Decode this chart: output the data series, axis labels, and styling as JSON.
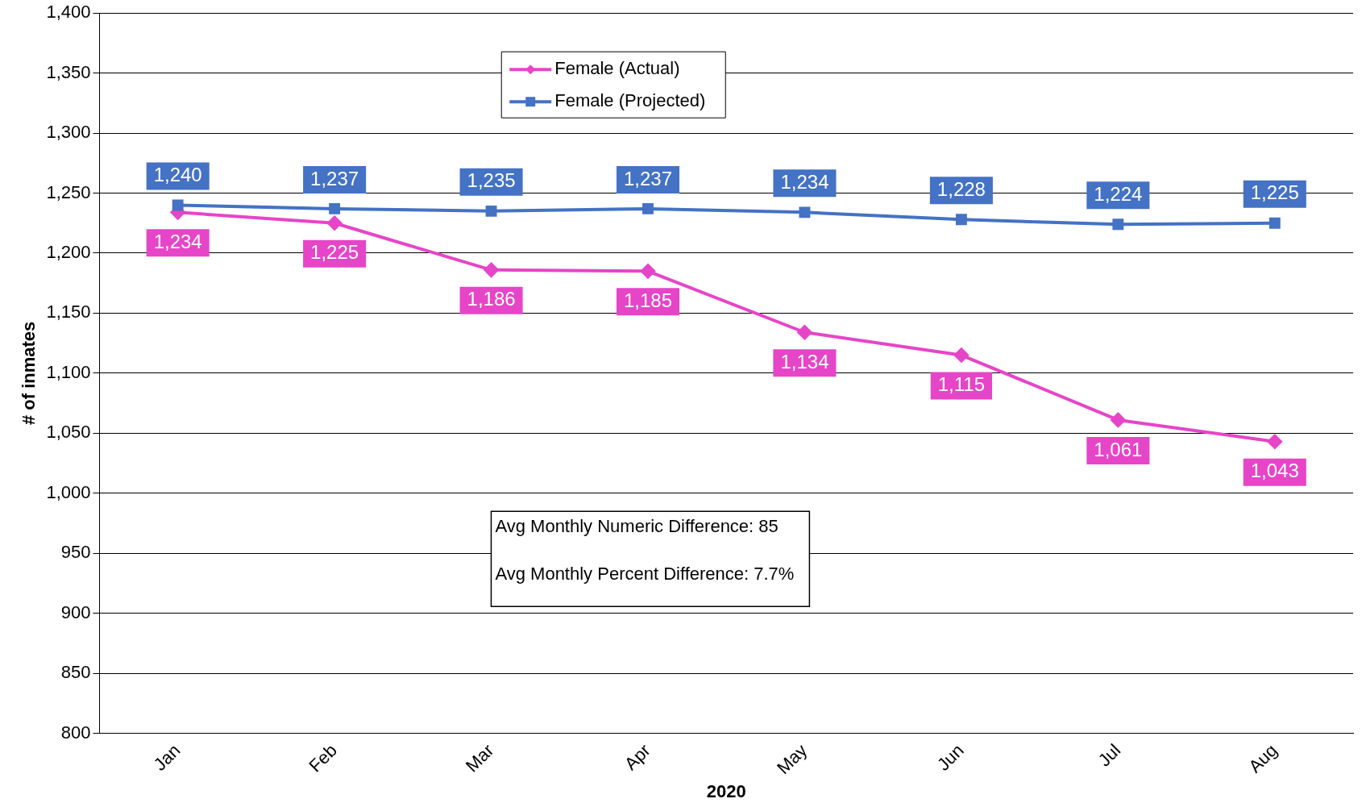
{
  "chart_data": {
    "type": "line",
    "xlabel": "2020",
    "ylabel": "# of inmates",
    "categories": [
      "Jan",
      "Feb",
      "Mar",
      "Apr",
      "May",
      "Jun",
      "Jul",
      "Aug"
    ],
    "series": [
      {
        "name": "Female (Actual)",
        "color": "#e645c8",
        "marker": "diamond",
        "values": [
          1234,
          1225,
          1186,
          1185,
          1134,
          1115,
          1061,
          1043
        ],
        "value_labels": [
          "1,234",
          "1,225",
          "1,186",
          "1,185",
          "1,134",
          "1,115",
          "1,061",
          "1,043"
        ]
      },
      {
        "name": "Female (Projected)",
        "color": "#4472c4",
        "marker": "square",
        "values": [
          1240,
          1237,
          1235,
          1237,
          1234,
          1228,
          1224,
          1225
        ],
        "value_labels": [
          "1,240",
          "1,237",
          "1,235",
          "1,237",
          "1,234",
          "1,228",
          "1,224",
          "1,225"
        ]
      }
    ],
    "ylim": [
      800,
      1400
    ],
    "yticks": [
      800,
      850,
      900,
      950,
      {
        "value": 1000,
        "label": "1,000"
      },
      {
        "value": 1050,
        "label": "1,050"
      },
      {
        "value": 1100,
        "label": "1,100"
      },
      {
        "value": 1150,
        "label": "1,150"
      },
      {
        "value": 1200,
        "label": "1,200"
      },
      {
        "value": 1250,
        "label": "1,250"
      },
      {
        "value": 1300,
        "label": "1,300"
      },
      {
        "value": 1350,
        "label": "1,350"
      },
      {
        "value": 1400,
        "label": "1,400"
      }
    ],
    "grid": "y",
    "legend": "top",
    "annotations": [
      "Avg Monthly Numeric Difference: 85",
      "Avg Monthly Percent Difference: 7.7%"
    ]
  }
}
